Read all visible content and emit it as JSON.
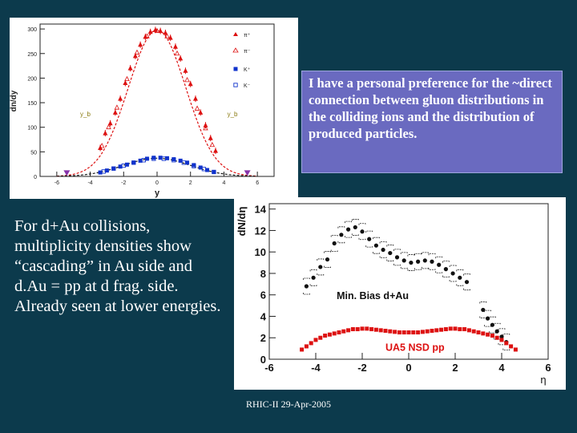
{
  "callout": {
    "text": "I have a personal preference for the ~direct connection between gluon distributions in the colliding ions and the distribution of produced particles."
  },
  "body_text": {
    "text": "For d+Au collisions, multiplicity densities show “cascading” in Au side and d.Au = pp at d frag. side. Already seen at lower energies."
  },
  "footer": {
    "text": "RHIC-II 29-Apr-2005"
  },
  "colors": {
    "background": "#0c3a4c",
    "callout_bg": "#6a6ac0",
    "pi_red": "#dd1111",
    "kaon_blue": "#1133cc",
    "beam_purple": "#8833aa"
  },
  "chart_data": [
    {
      "type": "scatter",
      "xlabel": "y",
      "ylabel": "dn/dy",
      "xlim": [
        -7,
        7
      ],
      "ylim": [
        0,
        310
      ],
      "xticks": [
        -6,
        -4,
        -2,
        0,
        2,
        4,
        6
      ],
      "yticks": [
        0,
        50,
        100,
        150,
        200,
        250,
        300
      ],
      "legend": [
        "π⁺",
        "π⁻",
        "K⁺",
        "K⁻"
      ],
      "annotations": [
        "y_b",
        "y_b"
      ],
      "grid": false,
      "series": [
        {
          "name": "π⁺",
          "x": [
            -3.4,
            -3.1,
            -2.8,
            -2.5,
            -2.2,
            -1.9,
            -1.6,
            -1.3,
            -1.0,
            -0.7,
            -0.4,
            -0.1,
            0.2,
            0.5,
            0.8,
            1.1,
            1.4,
            1.7,
            2.0,
            2.3,
            2.6,
            2.9,
            3.2,
            3.5
          ],
          "y": [
            58,
            88,
            108,
            130,
            158,
            190,
            220,
            245,
            268,
            284,
            294,
            298,
            296,
            292,
            282,
            264,
            240,
            215,
            188,
            158,
            130,
            104,
            78,
            52
          ]
        },
        {
          "name": "π⁻",
          "x": [
            -3.3,
            -2.9,
            -2.4,
            -1.8,
            -1.2,
            -0.6,
            0.0,
            0.6,
            1.2,
            1.8,
            2.4,
            2.9,
            3.3
          ],
          "y": [
            62,
            100,
            140,
            198,
            252,
            285,
            296,
            285,
            250,
            196,
            138,
            98,
            64
          ]
        },
        {
          "name": "K⁺",
          "x": [
            -3.4,
            -3.0,
            -2.6,
            -2.2,
            -1.8,
            -1.4,
            -1.0,
            -0.6,
            -0.2,
            0.2,
            0.6,
            1.0,
            1.4,
            1.8,
            2.2,
            2.6,
            3.0,
            3.4
          ],
          "y": [
            8,
            12,
            16,
            20,
            24,
            28,
            32,
            36,
            38,
            38,
            37,
            35,
            32,
            28,
            23,
            18,
            13,
            9
          ]
        },
        {
          "name": "K⁻",
          "x": [
            -3.2,
            -2.6,
            -2.0,
            -1.4,
            -0.8,
            -0.2,
            0.4,
            1.0,
            1.6,
            2.2,
            2.8,
            3.4
          ],
          "y": [
            10,
            16,
            22,
            28,
            33,
            36,
            36,
            33,
            28,
            21,
            15,
            9
          ]
        },
        {
          "name": "y_b",
          "x": [
            -5.4,
            5.4
          ],
          "y": [
            6,
            6
          ]
        }
      ]
    },
    {
      "type": "scatter",
      "xlabel": "η",
      "ylabel": "dN/dη",
      "xlim": [
        -6,
        6
      ],
      "ylim": [
        0,
        14.5
      ],
      "xticks": [
        -6,
        -4,
        -2,
        0,
        2,
        4,
        6
      ],
      "yticks": [
        0,
        2,
        4,
        6,
        8,
        10,
        12,
        14
      ],
      "annotations": [
        "Min. Bias d+Au",
        "UA5 NSD pp"
      ],
      "grid": false,
      "series": [
        {
          "name": "Min. Bias d+Au",
          "x": [
            -4.4,
            -4.1,
            -3.8,
            -3.5,
            -3.2,
            -2.9,
            -2.6,
            -2.3,
            -2.0,
            -1.7,
            -1.4,
            -1.1,
            -0.8,
            -0.5,
            -0.2,
            0.1,
            0.4,
            0.7,
            1.0,
            1.3,
            1.6,
            1.9,
            2.2,
            2.5,
            3.2,
            3.4,
            3.6,
            3.8,
            4.0,
            4.2
          ],
          "y": [
            6.8,
            7.6,
            8.6,
            9.3,
            10.8,
            11.6,
            12.1,
            12.3,
            11.9,
            11.2,
            10.6,
            10.2,
            9.9,
            9.5,
            9.2,
            9.0,
            9.1,
            9.2,
            9.1,
            8.8,
            8.4,
            8.0,
            7.6,
            7.2,
            4.6,
            3.8,
            3.2,
            2.6,
            2.1,
            1.6
          ]
        },
        {
          "name": "UA5 NSD pp",
          "x": [
            -4.6,
            -4.4,
            -4.2,
            -4.0,
            -3.8,
            -3.6,
            -3.4,
            -3.2,
            -3.0,
            -2.8,
            -2.6,
            -2.4,
            -2.2,
            -2.0,
            -1.8,
            -1.6,
            -1.4,
            -1.2,
            -1.0,
            -0.8,
            -0.6,
            -0.4,
            -0.2,
            0.0,
            0.2,
            0.4,
            0.6,
            0.8,
            1.0,
            1.2,
            1.4,
            1.6,
            1.8,
            2.0,
            2.2,
            2.4,
            2.6,
            2.8,
            3.0,
            3.2,
            3.4,
            3.6,
            3.8,
            4.0,
            4.2,
            4.4,
            4.6
          ],
          "y": [
            0.9,
            1.2,
            1.5,
            1.8,
            2.0,
            2.2,
            2.3,
            2.4,
            2.5,
            2.6,
            2.7,
            2.8,
            2.8,
            2.85,
            2.85,
            2.8,
            2.75,
            2.7,
            2.65,
            2.6,
            2.55,
            2.5,
            2.5,
            2.5,
            2.5,
            2.5,
            2.55,
            2.6,
            2.65,
            2.7,
            2.75,
            2.8,
            2.85,
            2.85,
            2.8,
            2.8,
            2.7,
            2.6,
            2.5,
            2.4,
            2.3,
            2.2,
            2.0,
            1.8,
            1.5,
            1.2,
            0.9
          ]
        }
      ]
    }
  ]
}
